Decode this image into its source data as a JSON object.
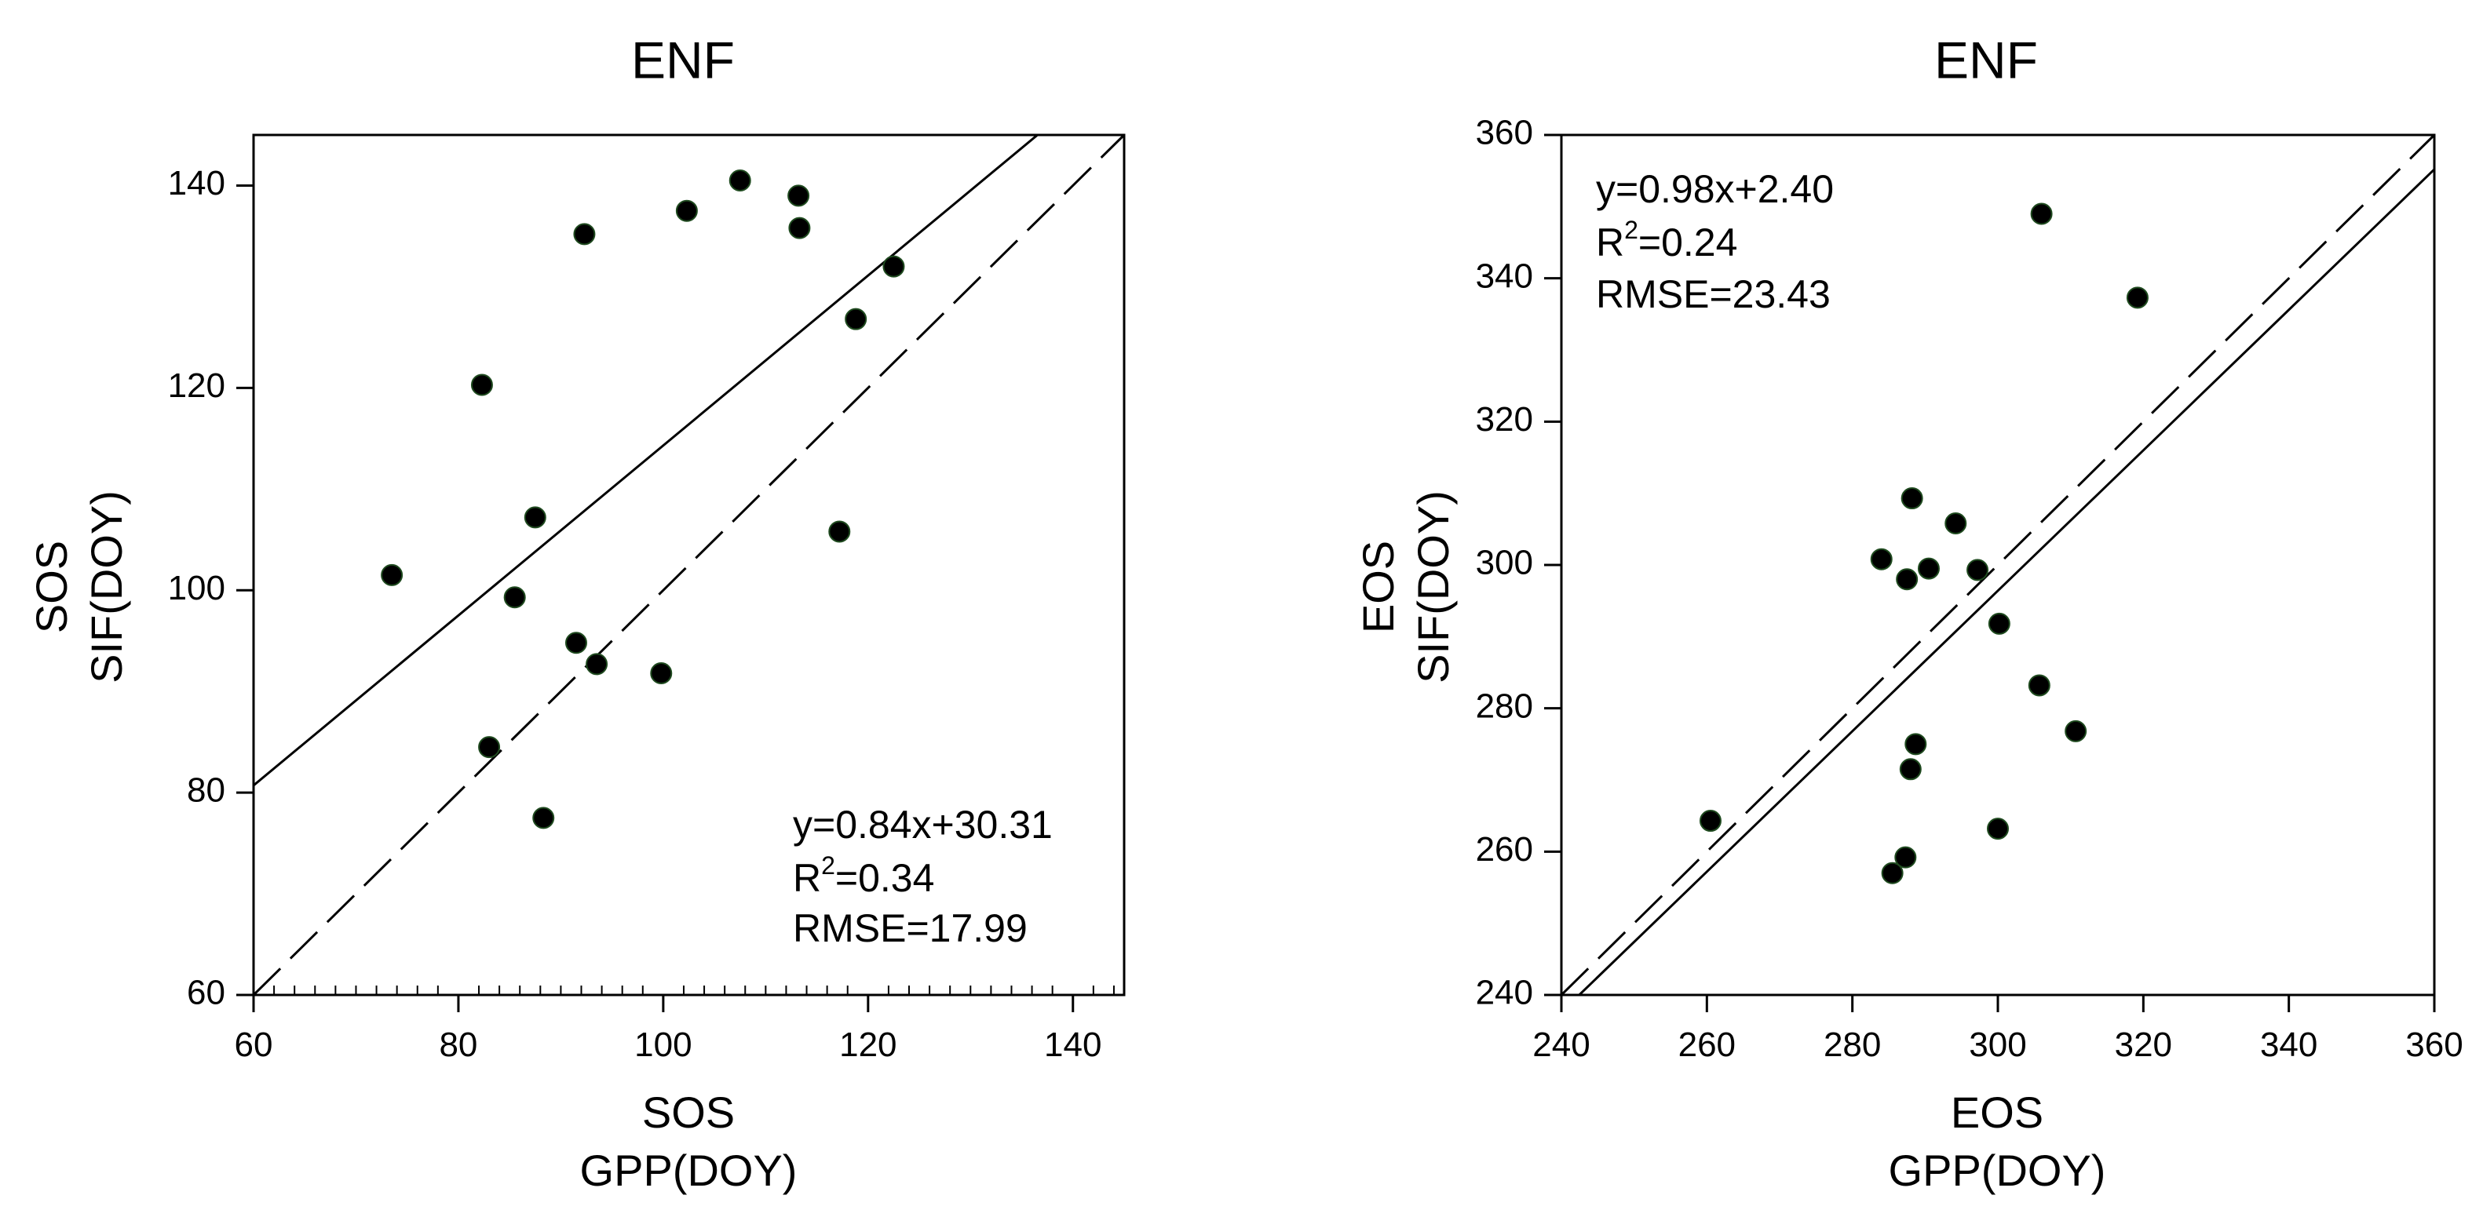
{
  "chart_data": [
    {
      "type": "scatter",
      "title": "ENF",
      "xlabel": [
        "SOS",
        "GPP(DOY)"
      ],
      "ylabel": [
        "SOS",
        "SIF(DOY)"
      ],
      "xlim": [
        60,
        145
      ],
      "ylim": [
        60,
        145
      ],
      "xticks": [
        60,
        80,
        100,
        120,
        140
      ],
      "yticks": [
        60,
        80,
        100,
        120,
        140
      ],
      "grid": false,
      "annotation": {
        "equation": "y=0.84x+30.31",
        "r2_prefix": "R",
        "r2_sup": "2",
        "r2_value": "=0.34",
        "rmse": "RMSE=17.99",
        "position": "bottom-right"
      },
      "fit_line": {
        "slope": 0.84,
        "intercept": 30.31,
        "style": "solid"
      },
      "one_to_one_line": {
        "style": "dashed"
      },
      "points": [
        {
          "x": 73.5,
          "y": 101.5
        },
        {
          "x": 82.3,
          "y": 120.3
        },
        {
          "x": 83,
          "y": 84.5
        },
        {
          "x": 85.5,
          "y": 99.3
        },
        {
          "x": 87.5,
          "y": 107.2
        },
        {
          "x": 88.3,
          "y": 77.5
        },
        {
          "x": 91.5,
          "y": 94.8
        },
        {
          "x": 92.3,
          "y": 135.2
        },
        {
          "x": 93.5,
          "y": 92.7
        },
        {
          "x": 99.8,
          "y": 91.8
        },
        {
          "x": 102.3,
          "y": 137.5
        },
        {
          "x": 107.5,
          "y": 140.5
        },
        {
          "x": 113.2,
          "y": 139
        },
        {
          "x": 113.3,
          "y": 135.8
        },
        {
          "x": 117.2,
          "y": 105.8
        },
        {
          "x": 118.8,
          "y": 126.8
        },
        {
          "x": 122.5,
          "y": 132
        }
      ]
    },
    {
      "type": "scatter",
      "title": "ENF",
      "xlabel": [
        "EOS",
        "GPP(DOY)"
      ],
      "ylabel": [
        "EOS",
        "SIF(DOY)"
      ],
      "xlim": [
        240,
        360
      ],
      "ylim": [
        240,
        360
      ],
      "xticks": [
        240,
        260,
        280,
        300,
        320,
        340,
        360
      ],
      "yticks": [
        240,
        260,
        280,
        300,
        320,
        340,
        360
      ],
      "grid": false,
      "annotation": {
        "equation": "y=0.98x+2.40",
        "r2_prefix": "R",
        "r2_sup": "2",
        "r2_value": "=0.24",
        "rmse": "RMSE=23.43",
        "position": "top-left"
      },
      "fit_line": {
        "slope": 0.98,
        "intercept": 2.4,
        "style": "solid"
      },
      "one_to_one_line": {
        "style": "dashed"
      },
      "points": [
        {
          "x": 260.5,
          "y": 264.3
        },
        {
          "x": 284,
          "y": 300.8
        },
        {
          "x": 285.5,
          "y": 257
        },
        {
          "x": 287.3,
          "y": 259.2
        },
        {
          "x": 287.5,
          "y": 298
        },
        {
          "x": 288,
          "y": 271.5
        },
        {
          "x": 288.2,
          "y": 309.3
        },
        {
          "x": 288.7,
          "y": 275
        },
        {
          "x": 290.5,
          "y": 299.5
        },
        {
          "x": 294.2,
          "y": 305.8
        },
        {
          "x": 297.2,
          "y": 299.3
        },
        {
          "x": 300,
          "y": 263.2
        },
        {
          "x": 300.2,
          "y": 291.8
        },
        {
          "x": 305.7,
          "y": 283.2
        },
        {
          "x": 306,
          "y": 349
        },
        {
          "x": 310.7,
          "y": 276.8
        },
        {
          "x": 319.2,
          "y": 337.3
        }
      ]
    }
  ]
}
